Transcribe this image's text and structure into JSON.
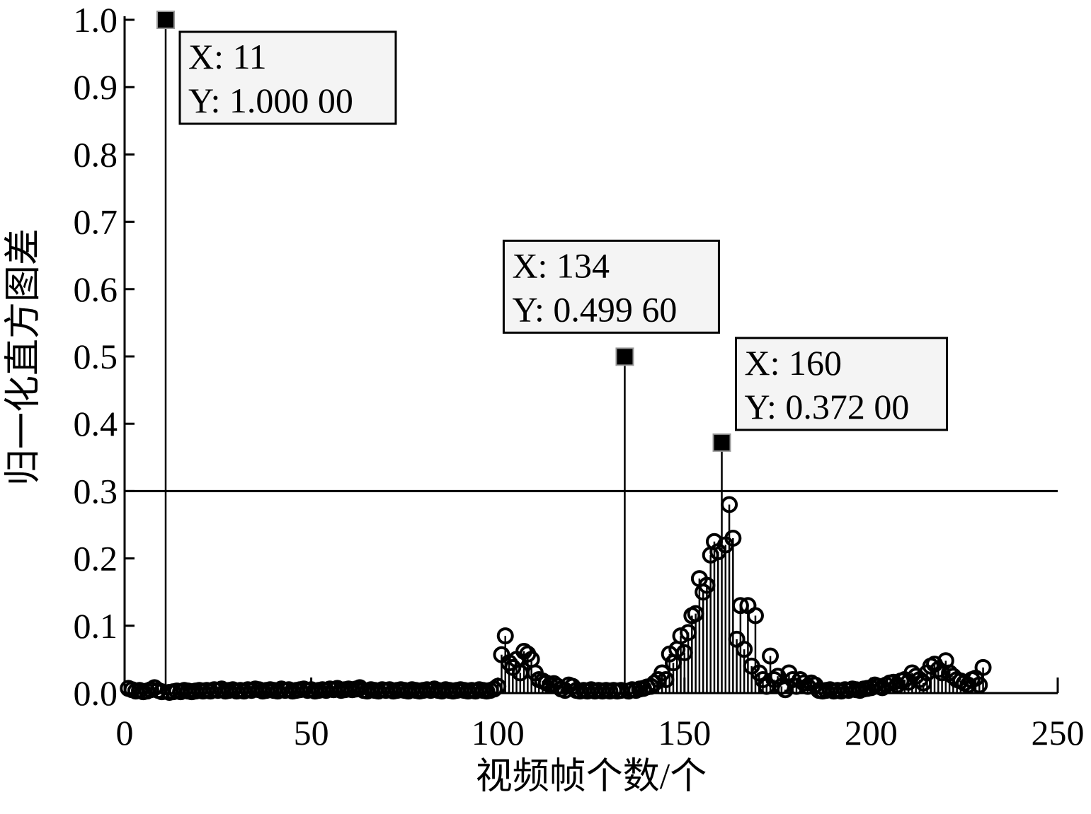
{
  "chart_data": {
    "type": "stem",
    "xlabel": "视频帧个数/个",
    "ylabel": "归一化直方图差",
    "xlim": [
      0,
      250
    ],
    "xticks": [
      0,
      50,
      100,
      150,
      200,
      250
    ],
    "ylim": [
      0,
      1
    ],
    "yticks": [
      {
        "value": 0,
        "label": "0.0"
      },
      {
        "value": 0.1,
        "label": "0.1"
      },
      {
        "value": 0.2,
        "label": "0.2"
      },
      {
        "value": 0.3,
        "label": "0.3"
      },
      {
        "value": 0.4,
        "label": "0.4"
      },
      {
        "value": 0.5,
        "label": "0.5"
      },
      {
        "value": 0.6,
        "label": "0.6"
      },
      {
        "value": 0.7,
        "label": "0.7"
      },
      {
        "value": 0.8,
        "label": "0.8"
      },
      {
        "value": 0.9,
        "label": "0.9"
      },
      {
        "value": 1,
        "label": "1.0"
      }
    ],
    "color": "#000000",
    "threshold": 0.3,
    "x": [
      1,
      2,
      3,
      4,
      5,
      6,
      7,
      8,
      9,
      10,
      11,
      12,
      13,
      14,
      15,
      16,
      17,
      18,
      19,
      20,
      21,
      22,
      23,
      24,
      25,
      26,
      27,
      28,
      29,
      30,
      31,
      32,
      33,
      34,
      35,
      36,
      37,
      38,
      39,
      40,
      41,
      42,
      43,
      44,
      45,
      46,
      47,
      48,
      49,
      50,
      51,
      52,
      53,
      54,
      55,
      56,
      57,
      58,
      59,
      60,
      61,
      62,
      63,
      64,
      65,
      66,
      67,
      68,
      69,
      70,
      71,
      72,
      73,
      74,
      75,
      76,
      77,
      78,
      79,
      80,
      81,
      82,
      83,
      84,
      85,
      86,
      87,
      88,
      89,
      90,
      91,
      92,
      93,
      94,
      95,
      96,
      97,
      98,
      99,
      100,
      101,
      102,
      103,
      104,
      105,
      106,
      107,
      108,
      109,
      110,
      111,
      112,
      113,
      114,
      115,
      116,
      117,
      118,
      119,
      120,
      121,
      122,
      123,
      124,
      125,
      126,
      127,
      128,
      129,
      130,
      131,
      132,
      133,
      134,
      135,
      136,
      137,
      138,
      139,
      140,
      141,
      142,
      143,
      144,
      145,
      146,
      147,
      148,
      149,
      150,
      151,
      152,
      153,
      154,
      155,
      156,
      157,
      158,
      159,
      160,
      161,
      162,
      163,
      164,
      165,
      166,
      167,
      168,
      169,
      170,
      171,
      172,
      173,
      174,
      175,
      176,
      177,
      178,
      179,
      180,
      181,
      182,
      183,
      184,
      185,
      186,
      187,
      188,
      189,
      190,
      191,
      192,
      193,
      194,
      195,
      196,
      197,
      198,
      199,
      200,
      201,
      202,
      203,
      204,
      205,
      206,
      207,
      208,
      209,
      210,
      211,
      212,
      213,
      214,
      215,
      216,
      217,
      218,
      219,
      220,
      221,
      222,
      223,
      224,
      225,
      226,
      227,
      228,
      229,
      230
    ],
    "values": [
      0.007,
      0.005,
      0.003,
      0.004,
      0.002,
      0.003,
      0.005,
      0.008,
      0.004,
      0.002,
      1.0,
      0.001,
      0.002,
      0.003,
      0.002,
      0.004,
      0.003,
      0.002,
      0.003,
      0.004,
      0.003,
      0.004,
      0.003,
      0.005,
      0.004,
      0.006,
      0.003,
      0.004,
      0.005,
      0.003,
      0.004,
      0.003,
      0.005,
      0.004,
      0.006,
      0.005,
      0.003,
      0.004,
      0.005,
      0.004,
      0.003,
      0.006,
      0.004,
      0.005,
      0.003,
      0.004,
      0.005,
      0.006,
      0.004,
      0.005,
      0.003,
      0.004,
      0.005,
      0.004,
      0.006,
      0.005,
      0.007,
      0.004,
      0.005,
      0.006,
      0.005,
      0.006,
      0.008,
      0.004,
      0.003,
      0.005,
      0.004,
      0.003,
      0.005,
      0.004,
      0.005,
      0.003,
      0.004,
      0.005,
      0.004,
      0.003,
      0.005,
      0.004,
      0.003,
      0.004,
      0.005,
      0.004,
      0.006,
      0.004,
      0.003,
      0.005,
      0.004,
      0.003,
      0.004,
      0.005,
      0.004,
      0.003,
      0.004,
      0.003,
      0.005,
      0.004,
      0.003,
      0.004,
      0.006,
      0.01,
      0.057,
      0.085,
      0.045,
      0.038,
      0.05,
      0.03,
      0.062,
      0.058,
      0.05,
      0.03,
      0.02,
      0.018,
      0.015,
      0.012,
      0.014,
      0.01,
      0.006,
      0.004,
      0.012,
      0.01,
      0.004,
      0.003,
      0.004,
      0.003,
      0.005,
      0.003,
      0.004,
      0.003,
      0.004,
      0.003,
      0.004,
      0.003,
      0.004,
      0.4996,
      0.003,
      0.005,
      0.004,
      0.006,
      0.007,
      0.009,
      0.01,
      0.015,
      0.02,
      0.03,
      0.02,
      0.058,
      0.045,
      0.065,
      0.085,
      0.06,
      0.09,
      0.115,
      0.118,
      0.17,
      0.15,
      0.16,
      0.205,
      0.225,
      0.21,
      0.372,
      0.22,
      0.28,
      0.23,
      0.08,
      0.13,
      0.065,
      0.13,
      0.04,
      0.115,
      0.03,
      0.02,
      0.01,
      0.055,
      0.02,
      0.025,
      0.01,
      0.005,
      0.03,
      0.02,
      0.01,
      0.02,
      0.015,
      0.01,
      0.015,
      0.012,
      0.004,
      0.003,
      0.004,
      0.005,
      0.003,
      0.004,
      0.003,
      0.005,
      0.004,
      0.006,
      0.005,
      0.004,
      0.006,
      0.007,
      0.008,
      0.012,
      0.01,
      0.008,
      0.012,
      0.015,
      0.016,
      0.012,
      0.018,
      0.02,
      0.016,
      0.03,
      0.025,
      0.02,
      0.015,
      0.03,
      0.04,
      0.043,
      0.035,
      0.03,
      0.048,
      0.03,
      0.025,
      0.02,
      0.018,
      0.015,
      0.012,
      0.02,
      0.022,
      0.012,
      0.038
    ],
    "annotations": [
      {
        "x": 11,
        "y": 1.0,
        "text": [
          "X: 11",
          "Y: 1.000 00"
        ]
      },
      {
        "x": 134,
        "y": 0.4996,
        "text": [
          "X: 134",
          "Y: 0.499 60"
        ]
      },
      {
        "x": 160,
        "y": 0.372,
        "text": [
          "X: 160",
          "Y: 0.372 00"
        ]
      }
    ]
  }
}
